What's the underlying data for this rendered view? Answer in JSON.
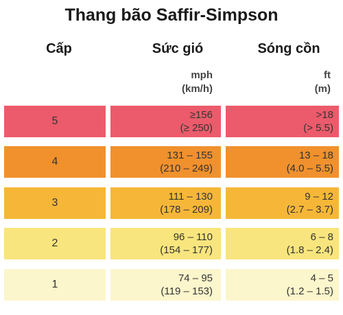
{
  "title": "Thang bão Saffir-Simpson",
  "headers": {
    "category": "Cấp",
    "wind": "Sức gió",
    "surge": "Sóng cồn"
  },
  "units": {
    "wind": [
      "mph",
      "(km/h)"
    ],
    "surge": [
      "ft",
      "(m)"
    ]
  },
  "rows": [
    {
      "category": "5",
      "wind": [
        "≥156",
        "(≥ 250)"
      ],
      "surge": [
        ">18",
        "(> 5.5)"
      ],
      "color": "#ec5b6b"
    },
    {
      "category": "4",
      "wind": [
        "131 – 155",
        "(210 – 249)"
      ],
      "surge": [
        "13 – 18",
        "(4.0 – 5.5)"
      ],
      "color": "#f0912d"
    },
    {
      "category": "3",
      "wind": [
        "111 – 130",
        "(178 – 209)"
      ],
      "surge": [
        "9 – 12",
        "(2.7 – 3.7)"
      ],
      "color": "#f6b738"
    },
    {
      "category": "2",
      "wind": [
        "96 – 110",
        "(154 – 177)"
      ],
      "surge": [
        "6 – 8",
        "(1.8 – 2.4)"
      ],
      "color": "#f9e57d"
    },
    {
      "category": "1",
      "wind": [
        "74 – 95",
        "(119 – 153)"
      ],
      "surge": [
        "4 – 5",
        "(1.2 – 1.5)"
      ],
      "color": "#fcf6cc"
    }
  ]
}
